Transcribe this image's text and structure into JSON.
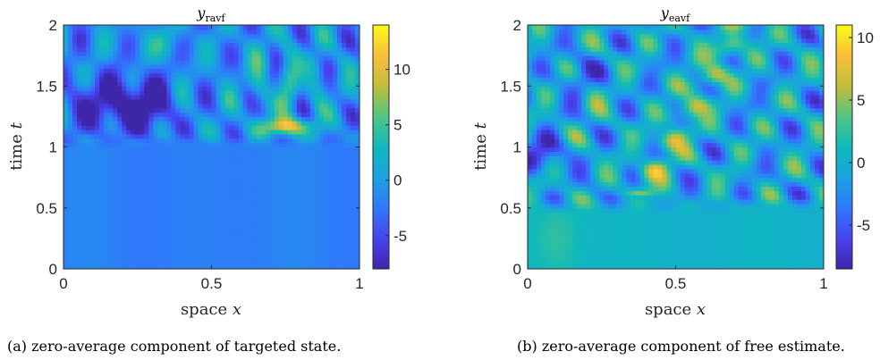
{
  "colormap": "parula",
  "chart_data": [
    {
      "type": "heatmap",
      "title_var": "y",
      "title_sub": "ravf",
      "xlabel": "space",
      "xlabel_var": "x",
      "ylabel": "time",
      "ylabel_var": "t",
      "xlim": [
        0,
        1
      ],
      "ylim": [
        0,
        2
      ],
      "x_ticks": [
        0,
        0.5,
        1
      ],
      "x_tick_labels": [
        "0",
        "0.5",
        "1"
      ],
      "y_ticks": [
        0,
        0.5,
        1,
        1.5,
        2
      ],
      "y_tick_labels": [
        "0",
        "0.5",
        "1",
        "1.5",
        "2"
      ],
      "clim": [
        -8,
        14
      ],
      "colorbar_ticks": [
        -5,
        0,
        5,
        10
      ],
      "colorbar_tick_labels": [
        "-5",
        "0",
        "5",
        "10"
      ],
      "caption": "(a) zero-average component of targeted state.",
      "baseline_value": -2,
      "onset_time": 1.0,
      "description_values": {
        "dark_blobs_t": 1.35,
        "dark_blobs_x": [
          0.1,
          0.22,
          0.3
        ],
        "peak_x": 0.75,
        "peak_t": 1.17,
        "peak_value": 12
      }
    },
    {
      "type": "heatmap",
      "title_var": "y",
      "title_sub": "eavf",
      "xlabel": "space",
      "xlabel_var": "x",
      "ylabel": "time",
      "ylabel_var": "t",
      "xlim": [
        0,
        1
      ],
      "ylim": [
        0,
        2
      ],
      "x_ticks": [
        0,
        0.5,
        1
      ],
      "x_tick_labels": [
        "0",
        "0.5",
        "1"
      ],
      "y_ticks": [
        0,
        0.5,
        1,
        1.5,
        2
      ],
      "y_tick_labels": [
        "0",
        "0.5",
        "1",
        "1.5",
        "2"
      ],
      "clim": [
        -8.5,
        11
      ],
      "colorbar_ticks": [
        -5,
        0,
        5,
        10
      ],
      "colorbar_tick_labels": [
        "-5",
        "0",
        "5",
        "10"
      ],
      "caption": "(b) zero-average component of free estimate.",
      "baseline_value": 0.5,
      "onset_time": 0.45,
      "description_values": {
        "ridge_start_x": 0.4,
        "ridge_start_t": 0.7,
        "ridge_end_x": 0.7,
        "ridge_end_t": 1.9,
        "peak_value": 10
      }
    }
  ]
}
